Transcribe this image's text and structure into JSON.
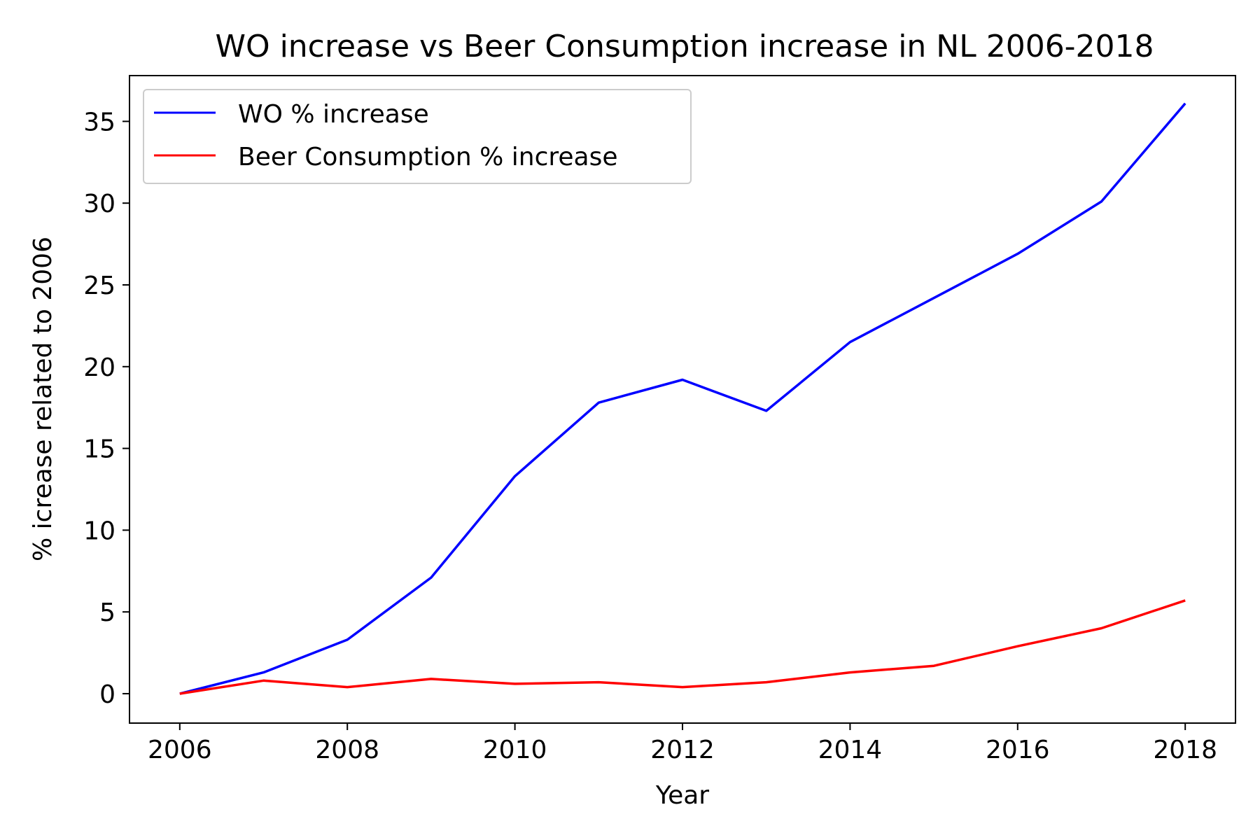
{
  "chart_data": {
    "type": "line",
    "title": "WO increase vs Beer Consumption increase in NL 2006-2018",
    "xlabel": "Year",
    "ylabel": "% icrease related to 2006",
    "x": [
      2006,
      2007,
      2008,
      2009,
      2010,
      2011,
      2012,
      2013,
      2014,
      2015,
      2016,
      2017,
      2018
    ],
    "xlim": [
      2005.4,
      2018.6
    ],
    "ylim": [
      -1.8,
      37.8
    ],
    "x_ticks": [
      2006,
      2008,
      2010,
      2012,
      2014,
      2016,
      2018
    ],
    "y_ticks": [
      0,
      5,
      10,
      15,
      20,
      25,
      30,
      35
    ],
    "grid": false,
    "legend_position": "top-left",
    "series": [
      {
        "name": "WO % increase",
        "color": "#0000ff",
        "values": [
          0,
          1.3,
          3.3,
          7.1,
          13.3,
          17.8,
          19.2,
          17.3,
          21.5,
          24.2,
          26.9,
          30.1,
          36.1
        ]
      },
      {
        "name": "Beer Consumption % increase",
        "color": "#ff0000",
        "values": [
          0,
          0.8,
          0.4,
          0.9,
          0.6,
          0.7,
          0.4,
          0.7,
          1.3,
          1.7,
          2.9,
          4.0,
          5.7
        ]
      }
    ]
  }
}
